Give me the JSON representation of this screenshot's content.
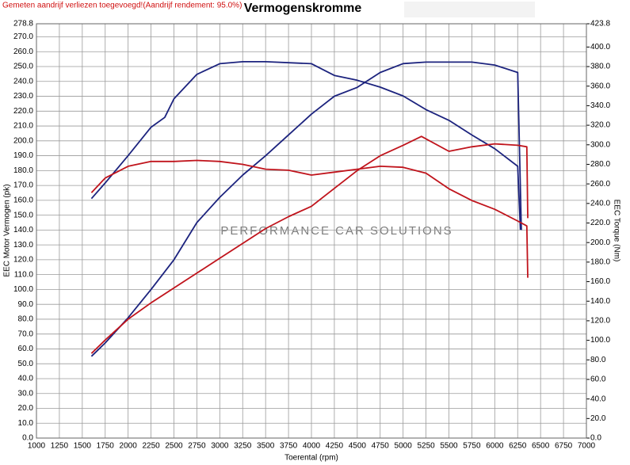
{
  "chart_data": {
    "type": "line",
    "title": "Vermogenskromme",
    "notice": "Gemeten aandrijf verliezen toegevoegd!(Aandrijf rendement: 95.0%)",
    "watermark": "PERFORMANCE CAR SOLUTIONS",
    "x_label": "Toerental (rpm)",
    "y_label": "EEC Motor Vermogen (pk)",
    "y2_label": "EEC Torque (Nm)",
    "grid": true,
    "xlim": [
      1000,
      7000
    ],
    "xticks": [
      1000,
      1250,
      1500,
      1750,
      2000,
      2250,
      2500,
      2750,
      3000,
      3250,
      3500,
      3750,
      4000,
      4250,
      4500,
      4750,
      5000,
      5250,
      5500,
      5750,
      6000,
      6250,
      6500,
      6750,
      7000
    ],
    "ylim": [
      0,
      278.8
    ],
    "yticks": [
      {
        "value": 0,
        "label": "0.0"
      },
      {
        "value": 10,
        "label": "10.0"
      },
      {
        "value": 20,
        "label": "20.0"
      },
      {
        "value": 30,
        "label": "30.0"
      },
      {
        "value": 40,
        "label": "40.0"
      },
      {
        "value": 50,
        "label": "50.0"
      },
      {
        "value": 60,
        "label": "60.0"
      },
      {
        "value": 70,
        "label": "70.0"
      },
      {
        "value": 80,
        "label": "80.0"
      },
      {
        "value": 90,
        "label": "90.0"
      },
      {
        "value": 100,
        "label": "100.0"
      },
      {
        "value": 110,
        "label": "110.0"
      },
      {
        "value": 120,
        "label": "120.0"
      },
      {
        "value": 130,
        "label": "130.0"
      },
      {
        "value": 140,
        "label": "140.0"
      },
      {
        "value": 150,
        "label": "150.0"
      },
      {
        "value": 160,
        "label": "160.0"
      },
      {
        "value": 170,
        "label": "170.0"
      },
      {
        "value": 180,
        "label": "180.0"
      },
      {
        "value": 190,
        "label": "190.0"
      },
      {
        "value": 200,
        "label": "200.0"
      },
      {
        "value": 210,
        "label": "210.0"
      },
      {
        "value": 220,
        "label": "220.0"
      },
      {
        "value": 230,
        "label": "230.0"
      },
      {
        "value": 240,
        "label": "240.0"
      },
      {
        "value": 250,
        "label": "250.0"
      },
      {
        "value": 260,
        "label": "260.0"
      },
      {
        "value": 270,
        "label": "270.0"
      },
      278.8
    ],
    "y2lim": [
      0,
      423.8
    ],
    "y2ticks": [
      {
        "value": 0,
        "label": "0.0"
      },
      {
        "value": 20,
        "label": "20.0"
      },
      {
        "value": 40,
        "label": "40.0"
      },
      {
        "value": 60,
        "label": "60.0"
      },
      {
        "value": 80,
        "label": "80.0"
      },
      {
        "value": 100,
        "label": "100.0"
      },
      {
        "value": 120,
        "label": "120.0"
      },
      {
        "value": 140,
        "label": "140.0"
      },
      {
        "value": 160,
        "label": "160.0"
      },
      {
        "value": 180,
        "label": "180.0"
      },
      {
        "value": 200,
        "label": "200.0"
      },
      {
        "value": 220,
        "label": "220.0"
      },
      {
        "value": 240,
        "label": "240.0"
      },
      {
        "value": 260,
        "label": "260.0"
      },
      {
        "value": 280,
        "label": "280.0"
      },
      {
        "value": 300,
        "label": "300.0"
      },
      {
        "value": 320,
        "label": "320.0"
      },
      {
        "value": 340,
        "label": "340.0"
      },
      {
        "value": 360,
        "label": "360.0"
      },
      {
        "value": 380,
        "label": "380.0"
      },
      {
        "value": 400,
        "label": "400.0"
      },
      423.8
    ],
    "series": [
      {
        "color": "#1c237e",
        "axis": "y2",
        "x": [
          1600,
          1750,
          2000,
          2250,
          2400,
          2500,
          2750,
          3000,
          3250,
          3500,
          4000,
          4250,
          4500,
          4750,
          5000,
          5250,
          5500,
          5750,
          6000,
          6250,
          6280
        ],
        "values": [
          245,
          261,
          289,
          318,
          328,
          347,
          372,
          383,
          385,
          385,
          383,
          371,
          366,
          359,
          350,
          336,
          325,
          310,
          296,
          278,
          213
        ]
      },
      {
        "color": "#1c237e",
        "x": [
          1600,
          1750,
          2000,
          2250,
          2500,
          2750,
          3000,
          3250,
          3500,
          3750,
          4000,
          4250,
          4500,
          4750,
          5000,
          5250,
          5500,
          5750,
          6000,
          6250,
          6290
        ],
        "values": [
          55,
          64,
          81,
          100,
          120,
          145,
          162,
          177,
          190,
          204,
          218,
          230,
          236,
          246,
          252,
          253,
          253,
          253,
          251,
          246,
          140
        ]
      },
      {
        "color": "#c0141c",
        "axis": "y2",
        "x": [
          1600,
          1750,
          2000,
          2250,
          2500,
          2750,
          3000,
          3250,
          3500,
          3750,
          4000,
          4250,
          4500,
          4750,
          5000,
          5250,
          5500,
          5750,
          6000,
          6250,
          6350,
          6360
        ],
        "values": [
          251,
          266,
          278,
          283,
          283,
          284,
          283,
          280,
          275,
          274,
          269,
          272,
          275,
          278,
          277,
          271,
          255,
          243,
          234,
          222,
          217,
          164
        ]
      },
      {
        "color": "#c0141c",
        "x": [
          1600,
          1750,
          2000,
          2250,
          2500,
          2750,
          3000,
          3250,
          3500,
          3750,
          4000,
          4250,
          4500,
          4750,
          5000,
          5200,
          5500,
          5750,
          6000,
          6250,
          6350,
          6360
        ],
        "values": [
          57,
          66,
          80,
          91,
          101,
          111,
          121,
          131,
          141,
          149,
          156,
          168,
          180,
          190,
          197,
          203,
          193,
          196,
          198,
          197,
          196,
          148
        ]
      }
    ]
  }
}
